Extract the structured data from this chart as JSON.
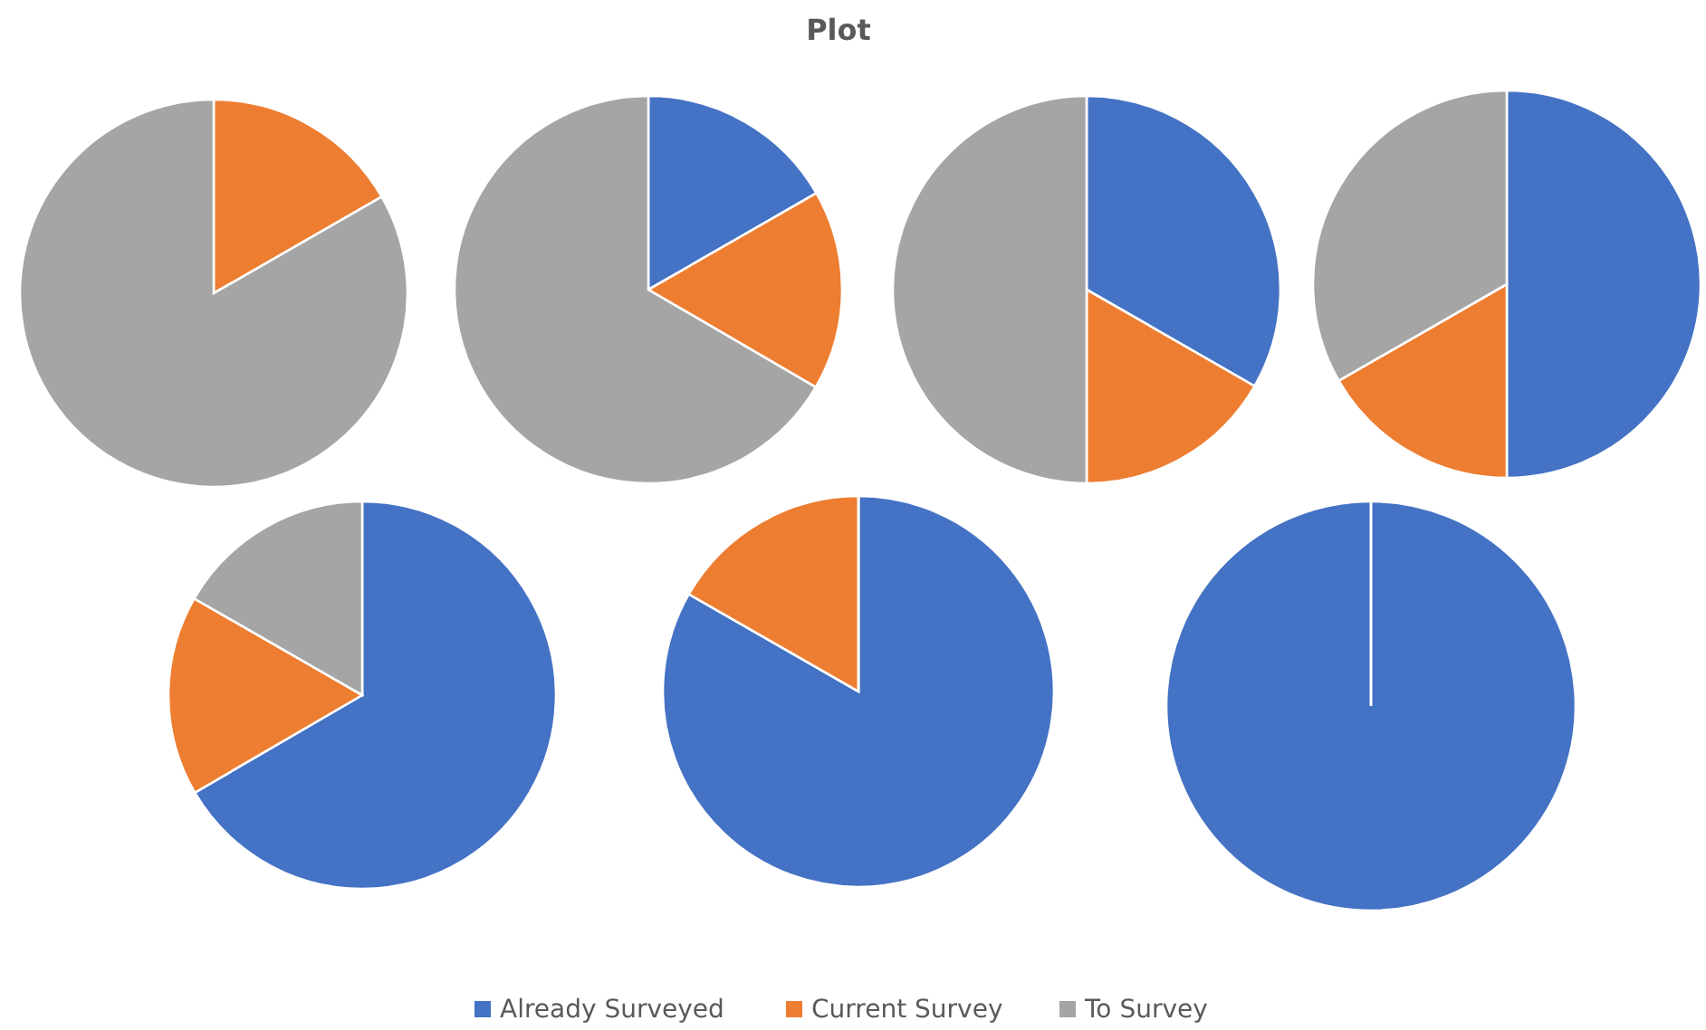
{
  "chart_data": [
    {
      "type": "pie",
      "categories": [
        "Already Surveyed",
        "Current Survey",
        "To Survey"
      ],
      "values": [
        0,
        16.7,
        83.3
      ],
      "colors": [
        "#4472c4",
        "#ed7d31",
        "#a5a5a5"
      ],
      "legend": "bottom"
    },
    {
      "type": "pie",
      "title": "Plot",
      "categories": [
        null,
        null,
        null
      ],
      "values": [
        16.7,
        16.7,
        66.6
      ],
      "colors": [
        "#4472c4",
        "#ed7d31",
        "#a5a5a5"
      ]
    },
    {
      "type": "pie",
      "categories": [
        null,
        null,
        null
      ],
      "values": [
        33.3,
        16.7,
        50
      ],
      "colors": [
        "#4472c4",
        "#ed7d31",
        "#a5a5a5"
      ]
    },
    {
      "type": "pie",
      "categories": [
        null,
        null,
        null
      ],
      "values": [
        50,
        16.7,
        33.3
      ],
      "colors": [
        "#4472c4",
        "#ed7d31",
        "#a5a5a5"
      ]
    },
    {
      "type": "pie",
      "categories": [
        null,
        null,
        null
      ],
      "values": [
        66.6,
        16.7,
        16.7
      ],
      "colors": [
        "#4472c4",
        "#ed7d31",
        "#a5a5a5"
      ]
    },
    {
      "type": "pie",
      "categories": [
        null,
        null,
        null
      ],
      "values": [
        83.3,
        16.7,
        0
      ],
      "colors": [
        "#4472c4",
        "#ed7d31",
        "#a5a5a5"
      ]
    },
    {
      "type": "pie",
      "categories": [
        null,
        null,
        null
      ],
      "values": [
        100,
        0,
        0
      ],
      "colors": [
        "#4472c4",
        "#ed7d31",
        "#a5a5a5"
      ]
    }
  ]
}
